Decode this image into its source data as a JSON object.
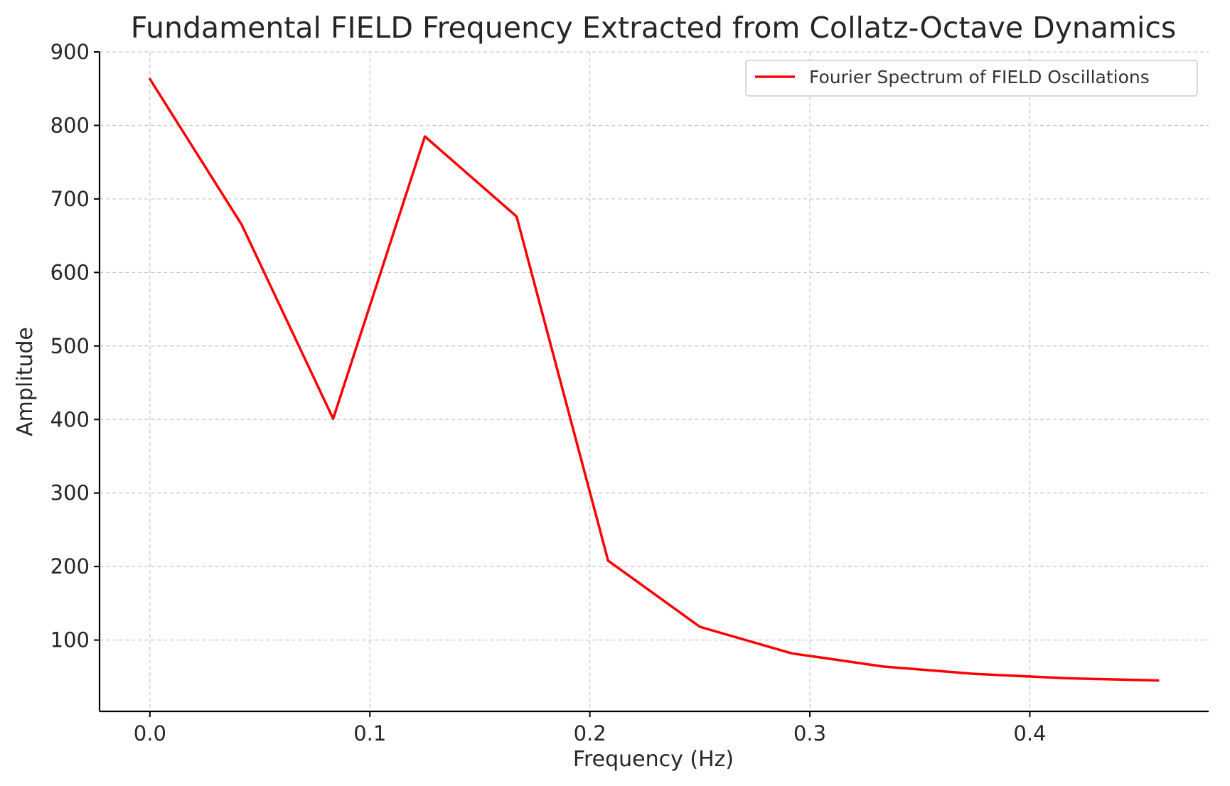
{
  "chart_data": {
    "type": "line",
    "title": "Fundamental FIELD Frequency Extracted from Collatz-Octave Dynamics",
    "xlabel": "Frequency (Hz)",
    "ylabel": "Amplitude",
    "xlim": [
      -0.0229,
      0.4813
    ],
    "ylim": [
      3,
      900
    ],
    "x_ticks": [
      0.0,
      0.1,
      0.2,
      0.3,
      0.4
    ],
    "x_tick_labels": [
      "0.0",
      "0.1",
      "0.2",
      "0.3",
      "0.4"
    ],
    "y_ticks": [
      100,
      200,
      300,
      400,
      500,
      600,
      700,
      800,
      900
    ],
    "y_tick_labels": [
      "100",
      "200",
      "300",
      "400",
      "500",
      "600",
      "700",
      "800",
      "900"
    ],
    "grid": true,
    "legend_position": "top-right",
    "series": [
      {
        "name": "Fourier Spectrum of FIELD Oscillations",
        "color": "#ff0000",
        "x": [
          0.0,
          0.0417,
          0.0833,
          0.125,
          0.1667,
          0.2083,
          0.25,
          0.2917,
          0.3333,
          0.375,
          0.4167,
          0.4583
        ],
        "y": [
          863,
          665,
          401,
          785,
          676,
          208,
          118,
          82,
          64,
          54,
          48,
          45
        ]
      }
    ]
  }
}
